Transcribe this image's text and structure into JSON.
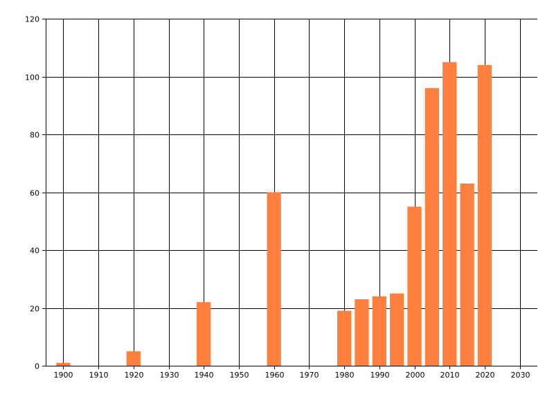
{
  "colors": {
    "bar": "#FF7F3F",
    "grid": "#000000",
    "axis": "#000000",
    "text": "#000000",
    "background": "#FFFFFF"
  },
  "chart_data": {
    "type": "bar",
    "title": "",
    "xlabel": "",
    "ylabel": "",
    "x": [
      1900,
      1920,
      1940,
      1960,
      1980,
      1985,
      1990,
      1995,
      2000,
      2005,
      2010,
      2015,
      2020
    ],
    "values": [
      1,
      5,
      22,
      60,
      19,
      23,
      24,
      25,
      55,
      96,
      105,
      63,
      104
    ],
    "xlim": [
      1895,
      2035
    ],
    "ylim": [
      0,
      120
    ],
    "x_ticks": [
      1900,
      1910,
      1920,
      1930,
      1940,
      1950,
      1960,
      1970,
      1980,
      1990,
      2000,
      2010,
      2020,
      2030
    ],
    "y_ticks": [
      0,
      20,
      40,
      60,
      80,
      100,
      120
    ],
    "bar_width_years": 4,
    "grid": true,
    "legend": "none"
  }
}
